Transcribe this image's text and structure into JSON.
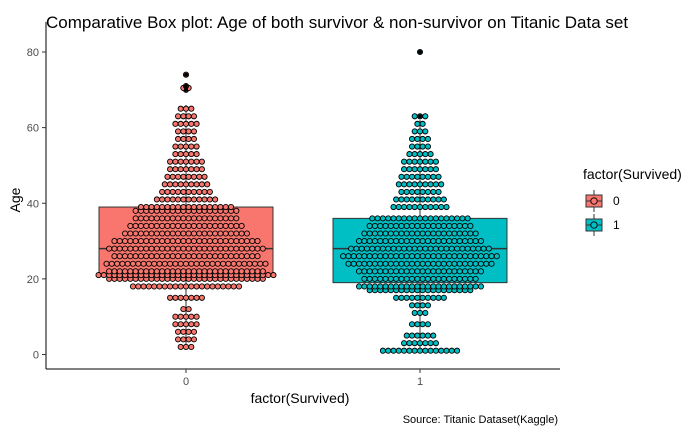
{
  "chart_data": {
    "type": "box",
    "title": "Comparative Box plot: Age of both survivor & non-survivor on Titanic Data set",
    "xlabel": "factor(Survived)",
    "ylabel": "Age",
    "caption": "Source: Titanic Dataset(Kaggle)",
    "categories": [
      "0",
      "1"
    ],
    "ylim": [
      -3,
      85
    ],
    "yticks": [
      0,
      20,
      40,
      60,
      80
    ],
    "legend": {
      "title": "factor(Survived)",
      "position": "right",
      "entries": [
        "0",
        "1"
      ]
    },
    "series": [
      {
        "name": "0",
        "color": "#F8766D",
        "box": {
          "lower": 2,
          "q1": 21,
          "median": 28,
          "q3": 39,
          "upper": 66
        },
        "outliers": [
          70,
          70.5,
          71,
          74
        ],
        "dotplot_bins": [
          [
            2,
            3
          ],
          [
            4,
            4
          ],
          [
            6,
            4
          ],
          [
            8,
            5
          ],
          [
            10,
            5
          ],
          [
            12,
            2
          ],
          [
            15,
            7
          ],
          [
            18,
            21
          ],
          [
            20,
            30
          ],
          [
            21,
            34
          ],
          [
            22,
            30
          ],
          [
            24,
            31
          ],
          [
            26,
            28
          ],
          [
            28,
            30
          ],
          [
            30,
            28
          ],
          [
            32,
            24
          ],
          [
            34,
            22
          ],
          [
            36,
            20
          ],
          [
            38,
            20
          ],
          [
            39,
            18
          ],
          [
            41,
            12
          ],
          [
            43,
            10
          ],
          [
            45,
            9
          ],
          [
            47,
            8
          ],
          [
            49,
            7
          ],
          [
            51,
            7
          ],
          [
            53,
            5
          ],
          [
            55,
            5
          ],
          [
            57,
            4
          ],
          [
            59,
            4
          ],
          [
            61,
            5
          ],
          [
            63,
            4
          ],
          [
            65,
            3
          ],
          [
            70,
            1
          ],
          [
            70.5,
            2
          ],
          [
            71,
            1
          ],
          [
            74,
            1
          ]
        ]
      },
      {
        "name": "1",
        "color": "#00BFC4",
        "box": {
          "lower": 1,
          "q1": 19,
          "median": 28,
          "q3": 36,
          "upper": 62
        },
        "outliers": [
          63,
          80
        ],
        "dotplot_bins": [
          [
            1,
            15
          ],
          [
            3,
            7
          ],
          [
            5,
            6
          ],
          [
            8,
            4
          ],
          [
            11,
            3
          ],
          [
            13,
            4
          ],
          [
            15,
            10
          ],
          [
            17,
            20
          ],
          [
            18,
            24
          ],
          [
            20,
            22
          ],
          [
            22,
            24
          ],
          [
            24,
            28
          ],
          [
            26,
            30
          ],
          [
            28,
            27
          ],
          [
            30,
            24
          ],
          [
            32,
            22
          ],
          [
            34,
            20
          ],
          [
            36,
            19
          ],
          [
            39,
            11
          ],
          [
            41,
            10
          ],
          [
            43,
            8
          ],
          [
            45,
            9
          ],
          [
            47,
            8
          ],
          [
            49,
            7
          ],
          [
            51,
            7
          ],
          [
            53,
            5
          ],
          [
            55,
            4
          ],
          [
            57,
            4
          ],
          [
            59,
            3
          ],
          [
            61,
            2
          ],
          [
            63,
            3
          ],
          [
            80,
            1
          ]
        ]
      }
    ]
  }
}
